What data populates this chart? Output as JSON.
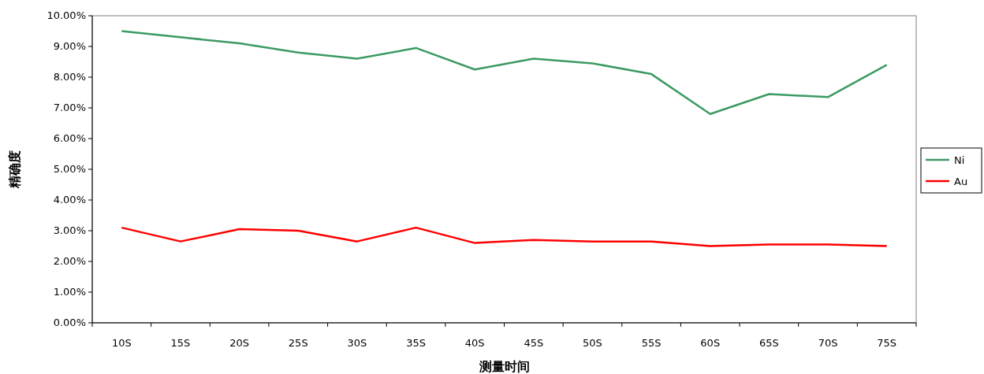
{
  "chart_data": {
    "type": "line",
    "xlabel": "测量时间",
    "ylabel": "精确度",
    "categories": [
      "10S",
      "15S",
      "20S",
      "25S",
      "30S",
      "35S",
      "40S",
      "45S",
      "50S",
      "55S",
      "60S",
      "65S",
      "70S",
      "75S"
    ],
    "series": [
      {
        "name": "Ni",
        "color": "#3c9a64",
        "values": [
          9.5,
          9.3,
          9.1,
          8.8,
          8.6,
          8.95,
          8.25,
          8.6,
          8.45,
          8.1,
          6.8,
          7.45,
          7.35,
          8.4
        ]
      },
      {
        "name": "Au",
        "color": "#ff0000",
        "values": [
          3.1,
          2.65,
          3.05,
          3.0,
          2.65,
          3.1,
          2.6,
          2.7,
          2.65,
          2.65,
          2.5,
          2.55,
          2.55,
          2.5
        ]
      }
    ],
    "ylim": [
      0,
      10
    ],
    "yticks": [
      {
        "value": 0,
        "label": "0.00%"
      },
      {
        "value": 1,
        "label": "1.00%"
      },
      {
        "value": 2,
        "label": "2.00%"
      },
      {
        "value": 3,
        "label": "3.00%"
      },
      {
        "value": 4,
        "label": "4.00%"
      },
      {
        "value": 5,
        "label": "5.00%"
      },
      {
        "value": 6,
        "label": "6.00%"
      },
      {
        "value": 7,
        "label": "7.00%"
      },
      {
        "value": 8,
        "label": "8.00%"
      },
      {
        "value": 9,
        "label": "9.00%"
      },
      {
        "value": 10,
        "label": "10.00%"
      }
    ],
    "grid": false,
    "legend": "right",
    "marker": "none",
    "line_style": "solid"
  }
}
